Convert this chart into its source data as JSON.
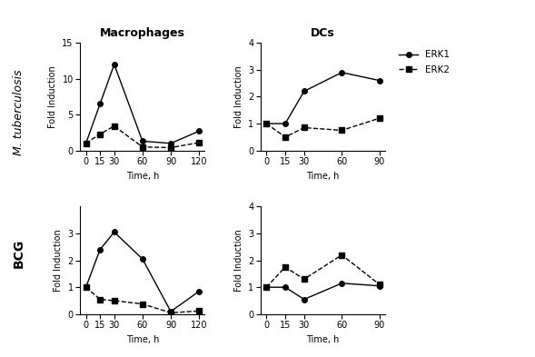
{
  "macrophages_mtb_ERK1": {
    "x": [
      0,
      15,
      30,
      60,
      90,
      120
    ],
    "y": [
      1,
      6.5,
      12,
      1.3,
      1.0,
      2.7
    ]
  },
  "macrophages_mtb_ERK2": {
    "x": [
      0,
      15,
      30,
      60,
      90,
      120
    ],
    "y": [
      1,
      2.3,
      3.4,
      0.5,
      0.4,
      1.1
    ]
  },
  "dc_mtb_ERK1": {
    "x": [
      0,
      15,
      30,
      60,
      90
    ],
    "y": [
      1.0,
      1.0,
      2.2,
      2.9,
      2.6
    ]
  },
  "dc_mtb_ERK2": {
    "x": [
      0,
      15,
      30,
      60,
      90
    ],
    "y": [
      1.0,
      0.5,
      0.85,
      0.75,
      1.2
    ]
  },
  "macrophages_bcg_ERK1": {
    "x": [
      0,
      15,
      30,
      60,
      90,
      120
    ],
    "y": [
      1.0,
      2.4,
      3.05,
      2.05,
      0.1,
      0.85
    ]
  },
  "macrophages_bcg_ERK2": {
    "x": [
      0,
      15,
      30,
      60,
      90,
      120
    ],
    "y": [
      1.0,
      0.55,
      0.5,
      0.38,
      0.05,
      0.12
    ]
  },
  "dc_bcg_ERK1": {
    "x": [
      0,
      15,
      30,
      60,
      90
    ],
    "y": [
      1.0,
      1.0,
      0.55,
      1.15,
      1.05
    ]
  },
  "dc_bcg_ERK2": {
    "x": [
      0,
      15,
      30,
      60,
      90
    ],
    "y": [
      1.0,
      1.75,
      1.3,
      2.2,
      1.1
    ]
  },
  "color_ERK1": "#000000",
  "color_ERK2": "#000000",
  "marker_ERK1": "o",
  "marker_ERK2": "s",
  "linestyle_ERK1": "-",
  "linestyle_ERK2": "--",
  "col_titles": [
    "Macrophages",
    "DCs"
  ],
  "row_label_0": "M. tuberculosis",
  "row_label_1": "BCG",
  "ylabel": "Fold Induction",
  "xlabel": "Time, h",
  "ylim_mtb_macro": [
    0,
    15
  ],
  "ylim_mtb_dc": [
    0,
    4
  ],
  "ylim_bcg_macro": [
    0,
    4
  ],
  "ylim_bcg_dc": [
    0,
    4
  ],
  "yticks_mtb_macro": [
    0,
    5,
    10,
    15
  ],
  "yticks_mtb_dc": [
    0,
    1,
    2,
    3,
    4
  ],
  "yticks_bcg_macro": [
    0,
    1,
    2,
    3
  ],
  "yticks_bcg_dc": [
    0,
    1,
    2,
    3,
    4
  ],
  "xticks_macro": [
    0,
    15,
    30,
    60,
    90,
    120
  ],
  "xticks_dc": [
    0,
    15,
    30,
    60,
    90
  ],
  "legend_labels": [
    "ERK1",
    "ERK2"
  ],
  "markersize": 4,
  "linewidth": 1.0,
  "tick_fontsize": 7,
  "label_fontsize": 7,
  "title_fontsize": 9,
  "row_label_fontsize": 9,
  "legend_fontsize": 7.5
}
